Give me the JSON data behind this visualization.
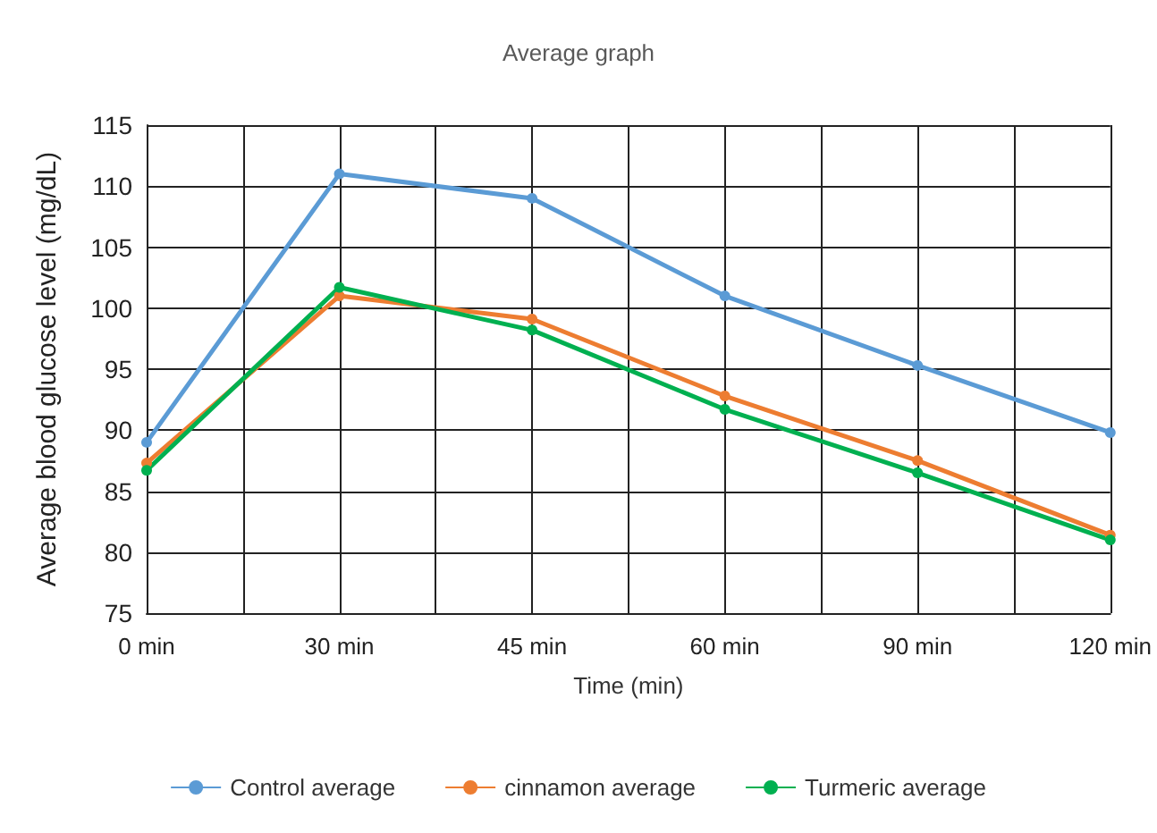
{
  "chart_data": {
    "type": "line",
    "title": "Average graph",
    "xlabel": "Time (min)",
    "ylabel": "Average blood glucose level (mg/dL)",
    "categories": [
      "0 min",
      "30 min",
      "45 min",
      "60 min",
      "90 min",
      "120 min"
    ],
    "series": [
      {
        "name": "Control average",
        "color": "#5b9bd5",
        "values": [
          89,
          111,
          109,
          101,
          95.3,
          89.8
        ]
      },
      {
        "name": "cinnamon average",
        "color": "#ed7d31",
        "values": [
          87.3,
          101,
          99.1,
          92.8,
          87.5,
          81.4
        ]
      },
      {
        "name": "Turmeric average",
        "color": "#00b050",
        "values": [
          86.7,
          101.7,
          98.2,
          91.7,
          86.5,
          81
        ]
      }
    ],
    "ylim": [
      75,
      115
    ],
    "yticks": [
      75,
      80,
      85,
      90,
      95,
      100,
      105,
      110,
      115
    ],
    "grid": true,
    "legend": "bottom",
    "marker": "circle",
    "line_style": "solid"
  }
}
